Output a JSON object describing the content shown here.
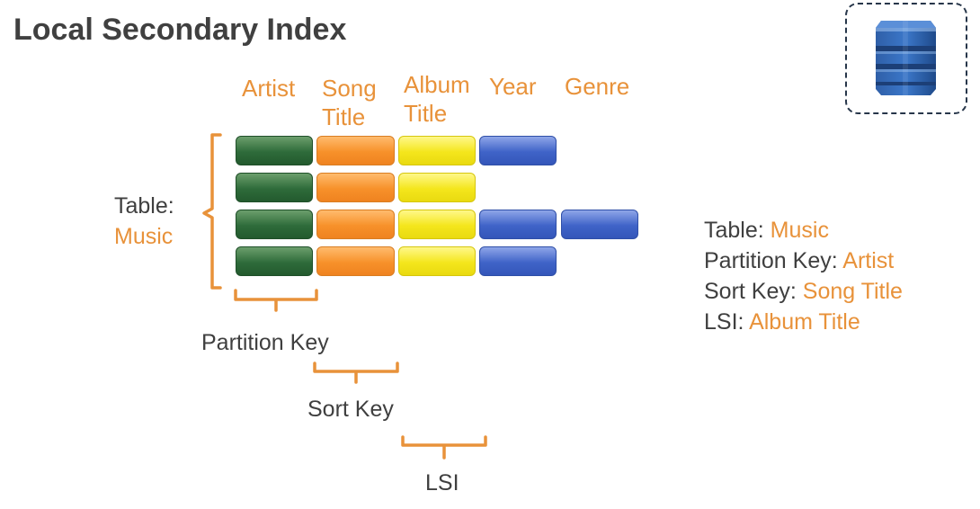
{
  "title": "Local Secondary Index",
  "columns": [
    {
      "line1": "Artist",
      "line2": ""
    },
    {
      "line1": "Song",
      "line2": "Title"
    },
    {
      "line1": "Album",
      "line2": "Title"
    },
    {
      "line1": "Year",
      "line2": ""
    },
    {
      "line1": "Genre",
      "line2": ""
    }
  ],
  "rows": [
    {
      "cells": [
        "green",
        "orange",
        "yellow",
        "blue"
      ]
    },
    {
      "cells": [
        "green",
        "orange",
        "yellow"
      ]
    },
    {
      "cells": [
        "green",
        "orange",
        "yellow",
        "blue",
        "blue"
      ]
    },
    {
      "cells": [
        "green",
        "orange",
        "yellow",
        "blue"
      ]
    }
  ],
  "table_label": {
    "prefix": "Table:",
    "name": "Music"
  },
  "brackets": {
    "partition": "Partition Key",
    "sort": "Sort Key",
    "lsi": "LSI"
  },
  "legend": {
    "table_key": "Table:",
    "table_val": "Music",
    "partition_key": "Partition Key:",
    "partition_val": "Artist",
    "sort_key": "Sort Key:",
    "sort_val": "Song Title",
    "lsi_key": "LSI:",
    "lsi_val": "Album Title"
  },
  "colors": {
    "accent": "#E8923A",
    "text": "#3f3f3f",
    "green": "#2e6b3a",
    "orange": "#f7912a",
    "yellow": "#f4e61c",
    "blue": "#3f63c8"
  },
  "icon": "dynamodb-database-icon"
}
